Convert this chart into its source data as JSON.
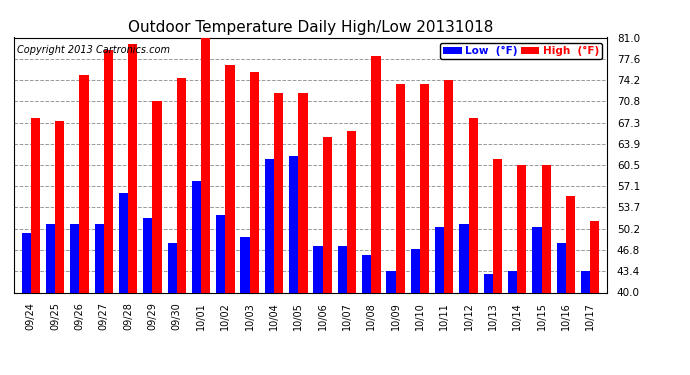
{
  "title": "Outdoor Temperature Daily High/Low 20131018",
  "copyright": "Copyright 2013 Cartronics.com",
  "legend_low": "Low  (°F)",
  "legend_high": "High  (°F)",
  "dates": [
    "09/24",
    "09/25",
    "09/26",
    "09/27",
    "09/28",
    "09/29",
    "09/30",
    "10/01",
    "10/02",
    "10/03",
    "10/04",
    "10/05",
    "10/06",
    "10/07",
    "10/08",
    "10/09",
    "10/10",
    "10/11",
    "10/12",
    "10/13",
    "10/14",
    "10/15",
    "10/16",
    "10/17"
  ],
  "high": [
    68.0,
    67.5,
    75.0,
    79.0,
    80.0,
    70.8,
    74.5,
    81.0,
    76.5,
    75.5,
    72.0,
    72.0,
    65.0,
    66.0,
    78.0,
    73.5,
    73.5,
    74.2,
    68.0,
    61.5,
    60.5,
    60.5,
    55.5,
    51.5
  ],
  "low": [
    49.5,
    51.0,
    51.0,
    51.0,
    56.0,
    52.0,
    48.0,
    58.0,
    52.5,
    49.0,
    61.5,
    62.0,
    47.5,
    47.5,
    46.0,
    43.5,
    47.0,
    50.5,
    51.0,
    43.0,
    43.5,
    50.5,
    48.0,
    43.5
  ],
  "high_color": "#ff0000",
  "low_color": "#0000ff",
  "bg_color": "#ffffff",
  "plot_bg_color": "#ffffff",
  "grid_color": "#999999",
  "ylim": [
    40.0,
    81.0
  ],
  "yticks": [
    40.0,
    43.4,
    46.8,
    50.2,
    53.7,
    57.1,
    60.5,
    63.9,
    67.3,
    70.8,
    74.2,
    77.6,
    81.0
  ],
  "title_fontsize": 11,
  "copyright_fontsize": 7,
  "bar_width": 0.38
}
